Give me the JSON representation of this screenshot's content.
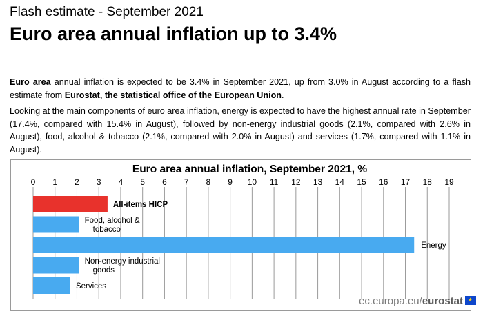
{
  "header": {
    "kicker": "Flash estimate - September 2021",
    "headline": "Euro area annual inflation up to 3.4%"
  },
  "body": {
    "p1_lead": "Euro area",
    "p1_mid": " annual inflation is expected to be 3.4% in September 2021, up from 3.0% in August according to a flash estimate from ",
    "p1_bold": "Eurostat, the statistical office of the European Union",
    "p1_end": ".",
    "p2": "Looking at the main components of euro area inflation, energy is expected to have the highest annual rate in September (17.4%, compared with 15.4% in August), followed by non-energy industrial goods (2.1%, compared with 2.6% in August), food, alcohol & tobacco (2.1%, compared with 2.0% in August) and services (1.7%, compared with 1.1% in August)."
  },
  "footer": {
    "site": "ec.europa.eu/",
    "brand": "eurostat"
  },
  "colors": {
    "highlight": "#e8322c",
    "bar": "#48aaf0",
    "grid": "#9a9a9a"
  },
  "chart_data": {
    "type": "bar",
    "orientation": "horizontal",
    "title": "Euro area annual inflation, September 2021, %",
    "xlim": [
      0,
      19
    ],
    "ticks": [
      "0",
      "1",
      "2",
      "3",
      "4",
      "5",
      "6",
      "7",
      "8",
      "9",
      "10",
      "11",
      "12",
      "13",
      "14",
      "15",
      "16",
      "17",
      "18",
      "19"
    ],
    "categories": [
      [
        "All-items HICP"
      ],
      [
        "Food, alcohol &",
        "tobacco"
      ],
      [
        "Energy"
      ],
      [
        "Non-energy industrial",
        "goods"
      ],
      [
        "Services"
      ]
    ],
    "values": [
      3.4,
      2.1,
      17.4,
      2.1,
      1.7
    ],
    "highlight_index": 0
  }
}
